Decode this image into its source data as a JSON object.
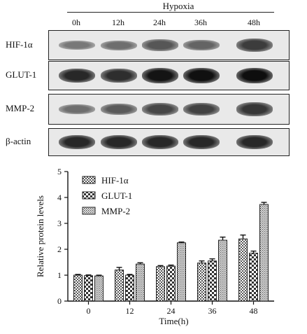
{
  "figure": {
    "hypoxia_label": "Hypoxia",
    "lane_labels": [
      "0h",
      "12h",
      "24h",
      "36h",
      "48h"
    ],
    "blot_rows": [
      {
        "label": "HIF-1α",
        "band_darkness": [
          0.45,
          0.5,
          0.62,
          0.55,
          0.75
        ]
      },
      {
        "label": "GLUT-1",
        "band_darkness": [
          0.85,
          0.82,
          0.95,
          0.97,
          0.98
        ]
      },
      {
        "label": "MMP-2",
        "band_darkness": [
          0.5,
          0.6,
          0.7,
          0.72,
          0.78
        ]
      },
      {
        "label": "β-actin",
        "band_darkness": [
          0.85,
          0.85,
          0.85,
          0.85,
          0.85
        ]
      }
    ]
  },
  "chart_data": {
    "type": "bar",
    "categories": [
      "0",
      "12",
      "24",
      "36",
      "48"
    ],
    "series": [
      {
        "name": "HIF-1α",
        "values": [
          1.0,
          1.2,
          1.33,
          1.47,
          2.4
        ],
        "errors": [
          0.03,
          0.1,
          0.04,
          0.08,
          0.15
        ],
        "pattern": "dots"
      },
      {
        "name": "GLUT-1",
        "values": [
          0.98,
          1.0,
          1.35,
          1.55,
          1.85
        ],
        "errors": [
          0.03,
          0.03,
          0.04,
          0.08,
          0.08
        ],
        "pattern": "check"
      },
      {
        "name": "MMP-2",
        "values": [
          0.97,
          1.43,
          2.25,
          2.35,
          3.73
        ],
        "errors": [
          0.03,
          0.05,
          0.03,
          0.12,
          0.08
        ],
        "pattern": "dense"
      }
    ],
    "xlabel": "Time(h)",
    "ylabel": "Relative protein levels",
    "ylim": [
      0,
      5
    ],
    "yticks": [
      "0",
      "1",
      "2",
      "3",
      "4",
      "5"
    ],
    "legend_position": "top-left",
    "colors": {
      "axis": "#111111",
      "bar_stroke": "#222222"
    }
  }
}
